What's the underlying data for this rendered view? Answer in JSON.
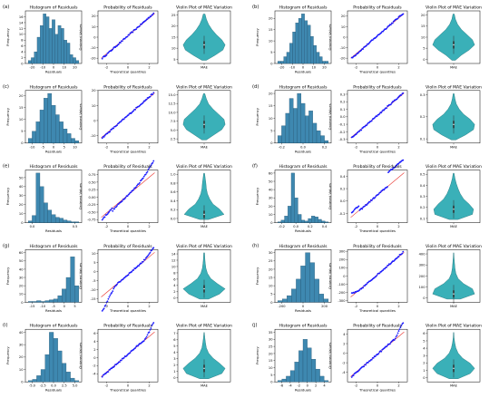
{
  "colors": {
    "hist": "#3e88b0",
    "hist_edge": "#1f4e6b",
    "points": "#1a1aff",
    "refline": "#e8302a",
    "violin": "#3ab0b8",
    "violin_edge": "#1e6c72",
    "box": "#333333"
  },
  "panels": [
    {
      "label": "(a)",
      "chart_data": [
        {
          "type": "bar",
          "title": "Histogram of Residuals",
          "xlabel": "Residuals",
          "ylabel": "Frequency",
          "x": [
            -20,
            -17.5,
            -15,
            -12.5,
            -10,
            -7.5,
            -5,
            -2.5,
            0,
            2.5,
            5,
            7.5,
            10,
            12.5,
            15,
            17.5,
            20
          ],
          "values": [
            1,
            2,
            4,
            9,
            13,
            17,
            16,
            12,
            15,
            10,
            13,
            12,
            8,
            7,
            3,
            2,
            1
          ],
          "xticks": [
            "-20",
            "-10",
            "0",
            "10",
            "20"
          ],
          "yticks": [
            "0",
            "2",
            "4",
            "6",
            "8",
            "10",
            "12",
            "14",
            "16"
          ]
        },
        {
          "type": "scatter",
          "title": "Probability of Residuals",
          "xlabel": "Theoretical quantiles",
          "ylabel": "Ordered Values",
          "xticks": [
            "-2",
            "0",
            "2"
          ],
          "yticks": [
            "-20",
            "-10",
            "0",
            "10",
            "20"
          ],
          "x_range": [
            -2.8,
            2.8
          ],
          "y_range": [
            -25,
            25
          ]
        },
        {
          "type": "violin",
          "title": "Violin Plot of MAE Variation",
          "xlabel": "MAE",
          "yticks": [
            "5",
            "10",
            "15",
            "20",
            "25"
          ]
        }
      ]
    },
    {
      "label": "(b)",
      "chart_data": [
        {
          "type": "bar",
          "title": "Histogram of Residuals",
          "xlabel": "Residuals",
          "ylabel": "Frequency",
          "x": [
            -20,
            -17.5,
            -15,
            -12.5,
            -10,
            -7.5,
            -5,
            -2.5,
            0,
            2.5,
            5,
            7.5,
            10,
            12.5,
            15,
            17.5,
            20
          ],
          "values": [
            1,
            1,
            3,
            5,
            9,
            14,
            18,
            20,
            22,
            19,
            17,
            12,
            8,
            5,
            3,
            1,
            1
          ],
          "xticks": [
            "-20",
            "-10",
            "0",
            "10",
            "20"
          ],
          "yticks": [
            "0",
            "5",
            "10",
            "15",
            "20"
          ]
        },
        {
          "type": "scatter",
          "title": "Probability of Residuals",
          "xlabel": "Theoretical quantiles",
          "ylabel": "Ordered Values",
          "xticks": [
            "-2",
            "0",
            "2"
          ],
          "yticks": [
            "-20",
            "-10",
            "0",
            "10",
            "20"
          ],
          "x_range": [
            -2.8,
            2.8
          ],
          "y_range": [
            -25,
            25
          ]
        },
        {
          "type": "violin",
          "title": "Violin Plot of MAE Variation",
          "xlabel": "MAE",
          "yticks": [
            "0",
            "5",
            "10",
            "15",
            "20"
          ]
        }
      ]
    },
    {
      "label": "(c)",
      "chart_data": [
        {
          "type": "bar",
          "title": "Histogram of Residuals",
          "xlabel": "Residuals",
          "ylabel": "Frequency",
          "x": [
            -15,
            -12.5,
            -10,
            -7.5,
            -5,
            -2.5,
            0,
            2.5,
            5,
            7.5,
            10,
            12.5,
            15
          ],
          "values": [
            2,
            5,
            9,
            14,
            19,
            21,
            16,
            12,
            9,
            6,
            4,
            2,
            1
          ],
          "xticks": [
            "-10",
            "-5",
            "0",
            "5",
            "10"
          ],
          "yticks": [
            "0",
            "5",
            "10",
            "15",
            "20"
          ]
        },
        {
          "type": "scatter",
          "title": "Probability of Residuals",
          "xlabel": "Theoretical quantiles",
          "ylabel": "Ordered Values",
          "xticks": [
            "-2",
            "0",
            "2"
          ],
          "yticks": [
            "-10",
            "0",
            "10",
            "20"
          ],
          "x_range": [
            -2.8,
            2.8
          ],
          "y_range": [
            -15,
            20
          ]
        },
        {
          "type": "violin",
          "title": "Violin Plot of MAE Variation",
          "xlabel": "MAE",
          "yticks": [
            "2.5",
            "5.0",
            "7.5",
            "10.0",
            "12.5",
            "15.0"
          ]
        }
      ]
    },
    {
      "label": "(d)",
      "chart_data": [
        {
          "type": "bar",
          "title": "Histogram of Residuals",
          "xlabel": "Residuals",
          "ylabel": "Frequency",
          "x": [
            -0.3,
            -0.25,
            -0.2,
            -0.15,
            -0.1,
            -0.05,
            0,
            0.05,
            0.1,
            0.15,
            0.2,
            0.25,
            0.3
          ],
          "values": [
            3,
            7,
            12,
            18,
            14,
            20,
            16,
            11,
            13,
            8,
            5,
            3,
            1
          ],
          "xticks": [
            "-0.2",
            "0.0",
            "0.2"
          ],
          "yticks": [
            "0",
            "5",
            "10",
            "15",
            "20"
          ]
        },
        {
          "type": "scatter",
          "title": "Probability of Residuals",
          "xlabel": "Theoretical quantiles",
          "ylabel": "Ordered Values",
          "xticks": [
            "-2",
            "0",
            "2"
          ],
          "yticks": [
            "-0.3",
            "-0.2",
            "-0.1",
            "0.0",
            "0.1",
            "0.2",
            "0.3"
          ],
          "x_range": [
            -2.8,
            2.8
          ],
          "y_range": [
            -0.35,
            0.35
          ]
        },
        {
          "type": "violin",
          "title": "Violin Plot of MAE Variation",
          "xlabel": "MAE",
          "yticks": [
            "0.1",
            "0.2",
            "0.3"
          ]
        }
      ]
    },
    {
      "label": "(e)",
      "chart_data": [
        {
          "type": "bar",
          "title": "Histogram of Residuals",
          "xlabel": "Residuals",
          "ylabel": "Frequency",
          "x": [
            -0.5,
            -0.4,
            -0.3,
            -0.2,
            -0.1,
            0,
            0.1,
            0.2,
            0.3,
            0.4,
            0.5,
            0.6,
            0.7
          ],
          "values": [
            2,
            8,
            55,
            40,
            22,
            14,
            9,
            6,
            5,
            3,
            2,
            1,
            1
          ],
          "xticks": [
            "0.0",
            "0.5"
          ],
          "yticks": [
            "0",
            "10",
            "20",
            "30",
            "40",
            "50"
          ]
        },
        {
          "type": "scatter",
          "title": "Probability of Residuals",
          "xlabel": "Theoretical quantiles",
          "ylabel": "Ordered Values",
          "xticks": [
            "-2",
            "0",
            "2"
          ],
          "yticks": [
            "-0.75",
            "-0.50",
            "-0.25",
            "0.00",
            "0.25",
            "0.50",
            "0.75"
          ],
          "x_range": [
            -2.8,
            2.8
          ],
          "y_range": [
            -0.85,
            0.9
          ]
        },
        {
          "type": "violin",
          "title": "Violin Plot of MAE Variation",
          "xlabel": "MAE",
          "yticks": [
            "0.0",
            "0.2",
            "0.4",
            "0.6",
            "0.8",
            "1.0"
          ]
        }
      ]
    },
    {
      "label": "(f)",
      "chart_data": [
        {
          "type": "bar",
          "title": "Histogram of Residuals",
          "xlabel": "Residuals",
          "ylabel": "Frequency",
          "x": [
            -0.3,
            -0.25,
            -0.2,
            -0.15,
            -0.1,
            -0.05,
            0,
            0.05,
            0.1,
            0.15,
            0.2,
            0.25,
            0.3,
            0.35,
            0.4
          ],
          "values": [
            1,
            3,
            8,
            20,
            60,
            30,
            10,
            3,
            2,
            5,
            8,
            7,
            4,
            2,
            1
          ],
          "xticks": [
            "-0.2",
            "0.0",
            "0.2",
            "0.4"
          ],
          "yticks": [
            "0",
            "10",
            "20",
            "30",
            "40",
            "50",
            "60"
          ]
        },
        {
          "type": "scatter",
          "title": "Probability of Residuals",
          "xlabel": "Theoretical quantiles",
          "ylabel": "Ordered Values",
          "xticks": [
            "-2",
            "0",
            "2"
          ],
          "yticks": [
            "-0.2",
            "0.0",
            "0.2",
            "0.4"
          ],
          "x_range": [
            -2.8,
            2.8
          ],
          "y_range": [
            -0.35,
            0.5
          ]
        },
        {
          "type": "violin",
          "title": "Violin Plot of MAE Variation",
          "xlabel": "MAE",
          "yticks": [
            "0.1",
            "0.2",
            "0.3",
            "0.4",
            "0.5"
          ]
        }
      ]
    },
    {
      "label": "(g)",
      "chart_data": [
        {
          "type": "bar",
          "title": "Histogram of Residuals",
          "xlabel": "Residuals",
          "ylabel": "Frequency",
          "x": [
            -15,
            -13,
            -11,
            -9,
            -7,
            -5,
            -3,
            -1,
            1,
            3,
            5,
            7
          ],
          "values": [
            1,
            1,
            2,
            1,
            2,
            3,
            4,
            8,
            16,
            30,
            55,
            20
          ],
          "xticks": [
            "-15",
            "-10",
            "-5",
            "0",
            "5"
          ],
          "yticks": [
            "0",
            "10",
            "20",
            "30",
            "40",
            "50",
            "60"
          ]
        },
        {
          "type": "scatter",
          "title": "Probability of Residuals",
          "xlabel": "Theoretical quantiles",
          "ylabel": "Ordered Values",
          "xticks": [
            "-2",
            "0",
            "2"
          ],
          "yticks": [
            "-15",
            "-10",
            "-5",
            "0",
            "5",
            "10"
          ],
          "x_range": [
            -2.8,
            2.8
          ],
          "y_range": [
            -17,
            12
          ]
        },
        {
          "type": "violin",
          "title": "Violin Plot of MAE Variation",
          "xlabel": "MAE",
          "yticks": [
            "0",
            "2",
            "4",
            "6",
            "8",
            "10",
            "12",
            "14"
          ]
        }
      ]
    },
    {
      "label": "(h)",
      "chart_data": [
        {
          "type": "bar",
          "title": "Histogram of Residuals",
          "xlabel": "Residuals",
          "ylabel": "Frequency",
          "x": [
            -300,
            -250,
            -200,
            -150,
            -100,
            -50,
            0,
            50,
            100,
            150,
            200
          ],
          "values": [
            1,
            2,
            4,
            8,
            14,
            22,
            30,
            24,
            14,
            5,
            2
          ],
          "xticks": [
            "-200",
            "0",
            "200"
          ],
          "yticks": [
            "0",
            "5",
            "10",
            "15",
            "20",
            "25",
            "30"
          ]
        },
        {
          "type": "scatter",
          "title": "Probability of Residuals",
          "xlabel": "Theoretical quantiles",
          "ylabel": "Ordered Values",
          "xticks": [
            "-2",
            "0",
            "2"
          ],
          "yticks": [
            "-300",
            "-200",
            "-100",
            "0",
            "100",
            "200",
            "300"
          ],
          "x_range": [
            -2.8,
            2.8
          ],
          "y_range": [
            -320,
            320
          ]
        },
        {
          "type": "violin",
          "title": "Violin Plot of MAE Variation",
          "xlabel": "MAE",
          "yticks": [
            "0",
            "100",
            "200",
            "300",
            "400"
          ]
        }
      ]
    },
    {
      "label": "(i)",
      "chart_data": [
        {
          "type": "bar",
          "title": "Histogram of Residuals",
          "xlabel": "Residuals",
          "ylabel": "Frequency",
          "x": [
            -5,
            -4,
            -3,
            -2,
            -1,
            0,
            1,
            2,
            3,
            4,
            5,
            6
          ],
          "values": [
            1,
            2,
            5,
            10,
            22,
            40,
            35,
            25,
            15,
            8,
            3,
            1
          ],
          "xticks": [
            "-5.0",
            "-2.5",
            "0.0",
            "2.5",
            "5.0"
          ],
          "yticks": [
            "0",
            "10",
            "20",
            "30",
            "40"
          ]
        },
        {
          "type": "scatter",
          "title": "Probability of Residuals",
          "xlabel": "Theoretical quantiles",
          "ylabel": "Ordered Values",
          "xticks": [
            "-2",
            "0",
            "2"
          ],
          "yticks": [
            "-4",
            "-2",
            "0",
            "2",
            "4",
            "6"
          ],
          "x_range": [
            -2.8,
            2.8
          ],
          "y_range": [
            -6,
            7
          ]
        },
        {
          "type": "violin",
          "title": "Violin Plot of MAE Variation",
          "xlabel": "MAE",
          "yticks": [
            "0",
            "1",
            "2",
            "3",
            "4",
            "5",
            "6",
            "7"
          ]
        }
      ]
    },
    {
      "label": "(j)",
      "chart_data": [
        {
          "type": "bar",
          "title": "Histogram of Residuals",
          "xlabel": "Residuals",
          "ylabel": "Frequency",
          "x": [
            -6,
            -5,
            -4,
            -3,
            -2,
            -1,
            0,
            1,
            2,
            3,
            4,
            5
          ],
          "values": [
            1,
            2,
            4,
            8,
            14,
            22,
            30,
            24,
            16,
            9,
            4,
            1
          ],
          "xticks": [
            "-6",
            "-4",
            "-2",
            "0",
            "2",
            "4"
          ],
          "yticks": [
            "0",
            "5",
            "10",
            "15",
            "20",
            "25",
            "30",
            "35"
          ]
        },
        {
          "type": "scatter",
          "title": "Probability of Residuals",
          "xlabel": "Theoretical quantiles",
          "ylabel": "Ordered Values",
          "xticks": [
            "-2",
            "0",
            "2"
          ],
          "yticks": [
            "-4",
            "-2",
            "0",
            "2",
            "4"
          ],
          "x_range": [
            -2.8,
            2.8
          ],
          "y_range": [
            -6,
            5
          ]
        },
        {
          "type": "violin",
          "title": "Violin Plot of MAE Variation",
          "xlabel": "MAE",
          "yticks": [
            "0",
            "1",
            "2",
            "3",
            "4",
            "5",
            "6"
          ]
        }
      ]
    }
  ]
}
